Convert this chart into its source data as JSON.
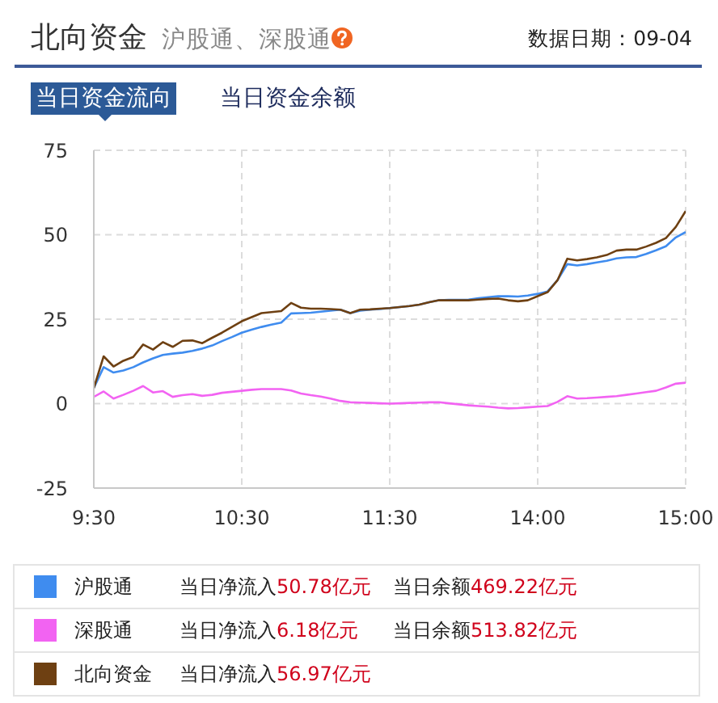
{
  "chart_data": {
    "type": "line",
    "title": "北向资金",
    "subtitle": "沪股通、深股通",
    "annotations": [
      "数据日期：09-04",
      "当日资金流向",
      "当日资金余额",
      "当日净流入50.78亿元",
      "当日余额469.22亿元",
      "当日净流入6.18亿元",
      "当日余额513.82亿元",
      "当日净流入56.97亿元"
    ],
    "categories": [
      "9:30",
      null,
      null,
      null,
      null,
      null,
      null,
      null,
      null,
      null,
      null,
      null,
      null,
      null,
      null,
      "10:30",
      null,
      null,
      null,
      null,
      null,
      null,
      null,
      null,
      null,
      null,
      null,
      null,
      null,
      null,
      "11:30",
      null,
      null,
      null,
      null,
      null,
      null,
      null,
      null,
      null,
      null,
      null,
      null,
      null,
      null,
      "14:00",
      null,
      null,
      null,
      null,
      null,
      null,
      null,
      null,
      null,
      null,
      null,
      null,
      null,
      null,
      "15:00"
    ],
    "ylim": [
      -25,
      75
    ],
    "yticks": [
      -25,
      0,
      25,
      50,
      75
    ],
    "grid": true,
    "legend": "bottom",
    "marker": "none",
    "line_style": "solid",
    "series": [
      {
        "name": "沪股通",
        "color": "#3f8cef",
        "values": [
          4.6,
          10.8,
          9.2,
          9.8,
          10.8,
          12.2,
          13.4,
          14.4,
          14.8,
          15.1,
          15.6,
          16.3,
          17.2,
          18.5,
          19.7,
          21,
          21.9,
          22.7,
          23.4,
          24,
          26.7,
          26.8,
          26.9,
          27.2,
          27.5,
          27.8,
          26.8,
          27.5,
          27.8,
          28,
          28.3,
          28.6,
          28.9,
          29.3,
          30,
          30.6,
          30.7,
          30.7,
          30.8,
          31.2,
          31.5,
          31.8,
          31.8,
          31.7,
          32,
          32.5,
          33.2,
          36.5,
          41.3,
          40.9,
          41.3,
          41.8,
          42.3,
          43,
          43.3,
          43.4,
          44.3,
          45.4,
          46.6,
          49.2,
          50.8
        ]
      },
      {
        "name": "深股通",
        "color": "#f263f2",
        "values": [
          2,
          3.6,
          1.5,
          2.6,
          3.8,
          5.2,
          3.3,
          3.7,
          2,
          2.5,
          2.8,
          2.3,
          2.6,
          3.2,
          3.5,
          3.8,
          4.1,
          4.3,
          4.3,
          4.3,
          3.9,
          3,
          2.5,
          2.1,
          1.5,
          0.8,
          0.4,
          0.3,
          0.2,
          0.1,
          0,
          0.1,
          0.2,
          0.3,
          0.4,
          0.4,
          0.1,
          -0.2,
          -0.5,
          -0.7,
          -0.9,
          -1.2,
          -1.4,
          -1.3,
          -1.1,
          -0.9,
          -0.7,
          0.5,
          2.2,
          1.5,
          1.6,
          1.8,
          2,
          2.2,
          2.6,
          3,
          3.4,
          3.8,
          4.8,
          5.9,
          6.2
        ]
      },
      {
        "name": "北向资金",
        "color": "#6e4012",
        "values": [
          4.6,
          14,
          11,
          12.7,
          13.8,
          17.5,
          16,
          18.2,
          16.8,
          18.6,
          18.7,
          17.9,
          19.5,
          21,
          22.7,
          24.4,
          25.6,
          26.8,
          27.1,
          27.4,
          29.8,
          28.4,
          28.1,
          28.1,
          28,
          27.8,
          26.8,
          27.8,
          27.9,
          28.1,
          28.3,
          28.6,
          28.9,
          29.3,
          30,
          30.6,
          30.6,
          30.6,
          30.6,
          30.8,
          31,
          31.1,
          30.6,
          30.3,
          30.6,
          31.8,
          33,
          36.5,
          42.9,
          42.4,
          42.8,
          43.3,
          44,
          45.3,
          45.6,
          45.6,
          46.5,
          47.6,
          49,
          52.3,
          57
        ]
      }
    ]
  }
}
